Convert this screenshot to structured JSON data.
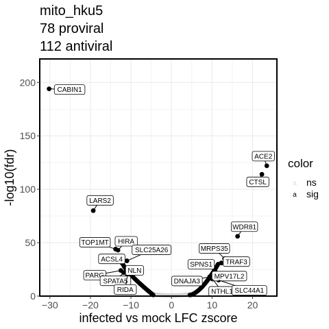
{
  "title_lines": [
    "mito_hku5",
    "78 proviral",
    "112 antiviral"
  ],
  "chart_data": {
    "type": "scatter",
    "xlabel": "infected vs mock LFC zscore",
    "ylabel": "-log10(fdr)",
    "xlim": [
      -32.5,
      26
    ],
    "ylim": [
      0,
      222
    ],
    "x_ticks": [
      -30,
      -20,
      -10,
      0,
      10,
      20
    ],
    "y_ticks": [
      0,
      50,
      100,
      150,
      200
    ],
    "grid": true,
    "legend": {
      "title": "color",
      "position": "right",
      "entries": [
        {
          "key": "a",
          "label": "ns",
          "color": "#dcdcdc"
        },
        {
          "key": "a",
          "label": "sig",
          "color": "#000000"
        }
      ]
    },
    "labeled_points": [
      {
        "label": "CABIN1",
        "x": -30.2,
        "y": 194
      },
      {
        "label": "LARS2",
        "x": -19.3,
        "y": 80
      },
      {
        "label": "TOP1MT",
        "x": -13.8,
        "y": 44
      },
      {
        "label": "HIRA",
        "x": -13.2,
        "y": 43
      },
      {
        "label": "SLC25A26",
        "x": -11.0,
        "y": 33
      },
      {
        "label": "ACSL4",
        "x": -12.2,
        "y": 31
      },
      {
        "label": "NLN",
        "x": -10.8,
        "y": 26
      },
      {
        "label": "PARG",
        "x": -12.5,
        "y": 24
      },
      {
        "label": "SPATA5",
        "x": -11.8,
        "y": 22
      },
      {
        "label": "RIDA",
        "x": -10.9,
        "y": 19
      },
      {
        "label": "ACE2",
        "x": 23.5,
        "y": 122
      },
      {
        "label": "CTSL",
        "x": 22.3,
        "y": 114
      },
      {
        "label": "WDR81",
        "x": 16.3,
        "y": 56
      },
      {
        "label": "MRPS35",
        "x": 13.1,
        "y": 35
      },
      {
        "label": "TRAF3",
        "x": 12.3,
        "y": 31
      },
      {
        "label": "SPNS1",
        "x": 10.7,
        "y": 24
      },
      {
        "label": "MPV17L2",
        "x": 10.2,
        "y": 20
      },
      {
        "label": "DNAJA3",
        "x": 9.4,
        "y": 18
      },
      {
        "label": "NTHL1",
        "x": 10.1,
        "y": 16
      },
      {
        "label": "SLC44A1",
        "x": 11.6,
        "y": 15
      }
    ],
    "sig_curve_left": {
      "x_start": -12,
      "x_end": -4.5,
      "y_start": 30,
      "y_end": 1
    },
    "sig_curve_right": {
      "x_start": 4.5,
      "x_end": 11.5,
      "y_start": 1,
      "y_end": 30
    },
    "ns_band": {
      "x_start": -4.5,
      "x_end": 4.5
    },
    "colors": {
      "sig": "#000000",
      "ns": "#d3d3d3",
      "panel_border": "#000000",
      "grid": "#ebebeb"
    }
  }
}
